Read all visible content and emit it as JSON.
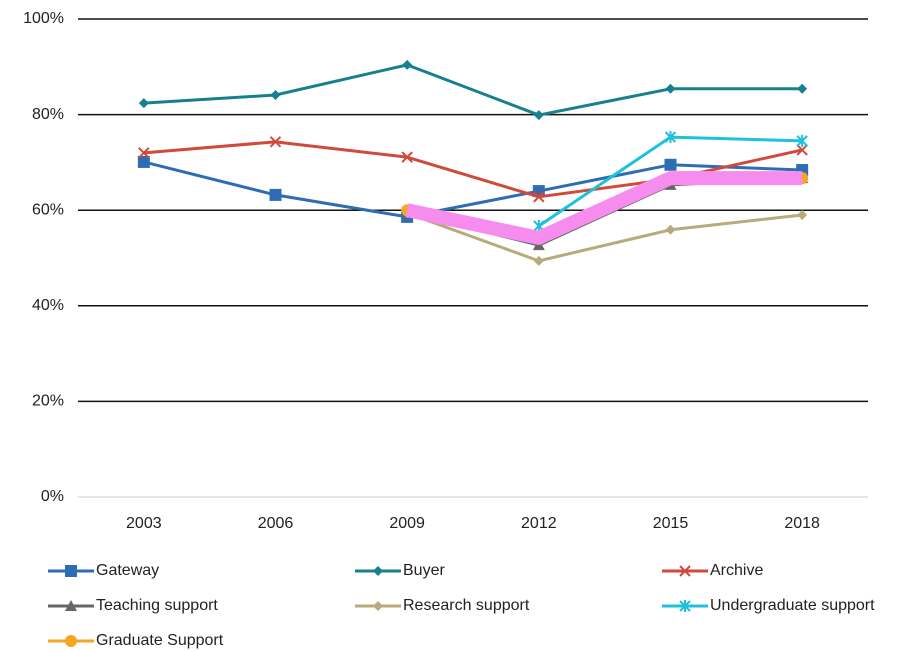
{
  "chart_data": {
    "type": "line",
    "categories": [
      "2003",
      "2006",
      "2009",
      "2012",
      "2015",
      "2018"
    ],
    "series": [
      {
        "name": "Gateway",
        "color": "#2e6db4",
        "marker": "square",
        "values": [
          70.1,
          63.2,
          58.6,
          64,
          69.5,
          68.4
        ]
      },
      {
        "name": "Buyer",
        "color": "#17808e",
        "marker": "diamond",
        "values": [
          82.4,
          84.1,
          90.4,
          79.9,
          85.4,
          85.4
        ]
      },
      {
        "name": "Archive",
        "color": "#d04a3c",
        "marker": "x",
        "values": [
          72,
          74.3,
          71.1,
          62.8,
          66.5,
          72.6
        ]
      },
      {
        "name": "Teaching support",
        "color": "#666666",
        "marker": "triangle",
        "values": [
          null,
          null,
          59.5,
          52.7,
          65.3,
          66.7
        ]
      },
      {
        "name": "Research support",
        "color": "#b8aa7a",
        "marker": "diamond",
        "values": [
          null,
          null,
          59.4,
          49.4,
          55.9,
          59
        ]
      },
      {
        "name": "Undergraduate support",
        "color": "#1ec0dc",
        "marker": "asterisk",
        "values": [
          null,
          null,
          null,
          56.7,
          75.3,
          74.5
        ]
      },
      {
        "name": "Graduate Support",
        "color": "#f5a623",
        "marker": "circle",
        "values": [
          null,
          null,
          60,
          54.2,
          66.7,
          66.7
        ]
      }
    ],
    "highlight": {
      "series": 6,
      "color": "#f58cee"
    },
    "ylim": [
      0,
      100
    ],
    "yticks": [
      {
        "value": 0,
        "label": "0%"
      },
      {
        "value": 20,
        "label": "20%"
      },
      {
        "value": 40,
        "label": "40%"
      },
      {
        "value": 60,
        "label": "60%"
      },
      {
        "value": 80,
        "label": "80%"
      },
      {
        "value": 100,
        "label": "100%"
      }
    ],
    "grid": true
  }
}
